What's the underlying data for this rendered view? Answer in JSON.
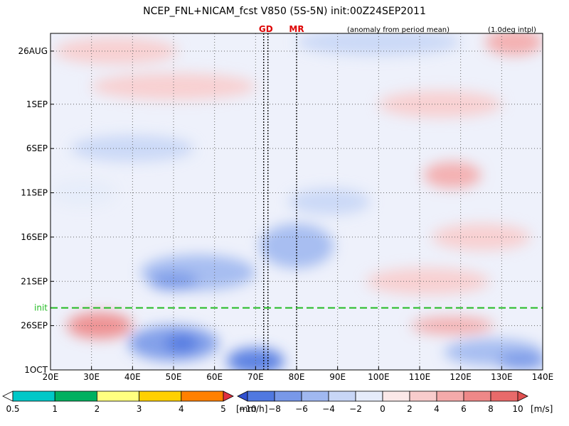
{
  "chart_data": {
    "type": "heatmap",
    "title": "NCEP_FNL+NICAM_fcst V850 (5S-5N) init:00Z24SEP2011",
    "subtitle_left": "(anomaly from period mean)",
    "subtitle_right": "(1.0deg intpl)",
    "x_axis": {
      "range": [
        20,
        140
      ],
      "unit": "degrees longitude",
      "ticks": [
        20,
        30,
        40,
        50,
        60,
        70,
        80,
        90,
        100,
        110,
        120,
        130,
        140
      ],
      "tick_labels": [
        "20E",
        "30E",
        "40E",
        "50E",
        "60E",
        "70E",
        "80E",
        "90E",
        "100E",
        "110E",
        "120E",
        "130E",
        "140E"
      ]
    },
    "y_axis": {
      "range": [
        "2011-08-24",
        "2011-10-01"
      ],
      "direction": "downward",
      "ticks": [
        "2011-08-26",
        "2011-09-01",
        "2011-09-06",
        "2011-09-11",
        "2011-09-16",
        "2011-09-21",
        "2011-09-26",
        "2011-10-01"
      ],
      "tick_labels": [
        "26AUG",
        "1SEP",
        "6SEP",
        "11SEP",
        "16SEP",
        "21SEP",
        "26SEP",
        "1OCT"
      ]
    },
    "grid": true,
    "markers": [
      {
        "label": "GD",
        "x": 72.5,
        "color": "#dd0000"
      },
      {
        "label": "MR",
        "x": 80,
        "color": "#dd0000"
      }
    ],
    "init_line": {
      "label": "init",
      "date": "2011-09-24",
      "color": "#22bb22"
    },
    "anomaly_patches": [
      {
        "x": 36,
        "y": "2011-08-26",
        "w": 30,
        "h": 3,
        "v": 3
      },
      {
        "x": 100,
        "y": "2011-08-25",
        "w": 40,
        "h": 3,
        "v": -3
      },
      {
        "x": 133,
        "y": "2011-08-25",
        "w": 14,
        "h": 3,
        "v": 4
      },
      {
        "x": 50,
        "y": "2011-08-30",
        "w": 40,
        "h": 3,
        "v": 2
      },
      {
        "x": 115,
        "y": "2011-09-01",
        "w": 30,
        "h": 3,
        "v": 2
      },
      {
        "x": 40,
        "y": "2011-09-06",
        "w": 30,
        "h": 3,
        "v": -3
      },
      {
        "x": 28,
        "y": "2011-09-11",
        "w": 16,
        "h": 3,
        "v": -2
      },
      {
        "x": 88,
        "y": "2011-09-12",
        "w": 20,
        "h": 3,
        "v": -4
      },
      {
        "x": 118,
        "y": "2011-09-09",
        "w": 14,
        "h": 3,
        "v": 4
      },
      {
        "x": 125,
        "y": "2011-09-16",
        "w": 24,
        "h": 3,
        "v": 2
      },
      {
        "x": 80,
        "y": "2011-09-17",
        "w": 18,
        "h": 5,
        "v": -5
      },
      {
        "x": 56,
        "y": "2011-09-20",
        "w": 28,
        "h": 4,
        "v": -5
      },
      {
        "x": 50,
        "y": "2011-09-21",
        "w": 12,
        "h": 2,
        "v": -7
      },
      {
        "x": 112,
        "y": "2011-09-21",
        "w": 30,
        "h": 3,
        "v": 2
      },
      {
        "x": 32,
        "y": "2011-09-26",
        "w": 16,
        "h": 3,
        "v": 6
      },
      {
        "x": 50,
        "y": "2011-09-28",
        "w": 22,
        "h": 4,
        "v": -8
      },
      {
        "x": 52,
        "y": "2011-09-28",
        "w": 8,
        "h": 2,
        "v": -9
      },
      {
        "x": 70,
        "y": "2011-09-30",
        "w": 14,
        "h": 3,
        "v": -10
      },
      {
        "x": 118,
        "y": "2011-09-26",
        "w": 20,
        "h": 2,
        "v": 4
      },
      {
        "x": 128,
        "y": "2011-09-29",
        "w": 24,
        "h": 3,
        "v": -5
      },
      {
        "x": 135,
        "y": "2011-09-30",
        "w": 12,
        "h": 2,
        "v": -8
      }
    ],
    "legend_precip": {
      "unit": "[mm/h]",
      "labels": [
        "0.5",
        "1",
        "2",
        "3",
        "4",
        "5"
      ],
      "colors": [
        "#ffffff",
        "#00c8c8",
        "#00b060",
        "#ffff80",
        "#ffd000",
        "#ff8000",
        "#e03040"
      ]
    },
    "legend_wind": {
      "unit": "[m/s]",
      "labels": [
        "−10",
        "−8",
        "−6",
        "−4",
        "−2",
        "0",
        "2",
        "4",
        "6",
        "8",
        "10"
      ],
      "colors": [
        "#3050d0",
        "#5078e0",
        "#7898e8",
        "#a0b8f0",
        "#c8d6f6",
        "#e6ecfa",
        "#fbe8e8",
        "#f8cccc",
        "#f4aaaa",
        "#ee8888",
        "#e86a6a",
        "#e05050"
      ]
    }
  }
}
